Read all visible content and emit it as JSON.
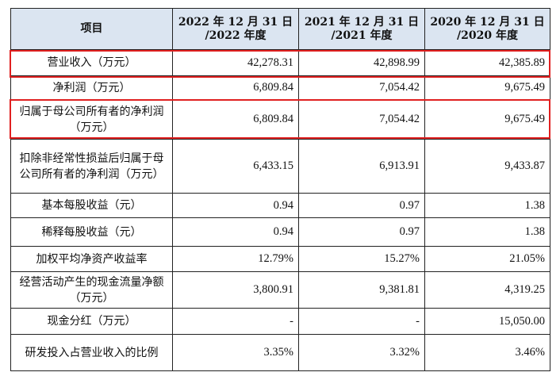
{
  "table": {
    "headers": [
      {
        "line1": "项目",
        "line2": ""
      },
      {
        "line1": "2022 年 12 月 31 日",
        "line2": "/2022 年度"
      },
      {
        "line1": "2021 年 12 月 31 日",
        "line2": "/2021 年度"
      },
      {
        "line1": "2020 年 12 月 31 日",
        "line2": "/2020 年度"
      }
    ],
    "rows": [
      {
        "label": "营业收入（万元）",
        "values": [
          "42,278.31",
          "42,898.99",
          "42,385.89"
        ]
      },
      {
        "label": "净利润（万元）",
        "values": [
          "6,809.84",
          "7,054.42",
          "9,675.49"
        ]
      },
      {
        "label": "归属于母公司所有者的净利润（万元）",
        "values": [
          "6,809.84",
          "7,054.42",
          "9,675.49"
        ]
      },
      {
        "label": "扣除非经常性损益后归属于母公司所有者的净利润（万元）",
        "values": [
          "6,433.15",
          "6,913.91",
          "9,433.87"
        ]
      },
      {
        "label": "基本每股收益（元）",
        "values": [
          "0.94",
          "0.97",
          "1.38"
        ]
      },
      {
        "label": "稀释每股收益（元）",
        "values": [
          "0.94",
          "0.97",
          "1.38"
        ]
      },
      {
        "label": "加权平均净资产收益率",
        "values": [
          "12.79%",
          "15.27%",
          "21.05%"
        ]
      },
      {
        "label": "经营活动产生的现金流量净额（万元）",
        "values": [
          "3,800.91",
          "9,381.81",
          "4,319.25"
        ]
      },
      {
        "label": "现金分红（万元）",
        "values": [
          "-",
          "-",
          "15,050.00"
        ]
      },
      {
        "label": "研发投入占营业收入的比例",
        "values": [
          "3.35%",
          "3.32%",
          "3.46%"
        ]
      }
    ]
  },
  "highlight_color": "#e02020"
}
